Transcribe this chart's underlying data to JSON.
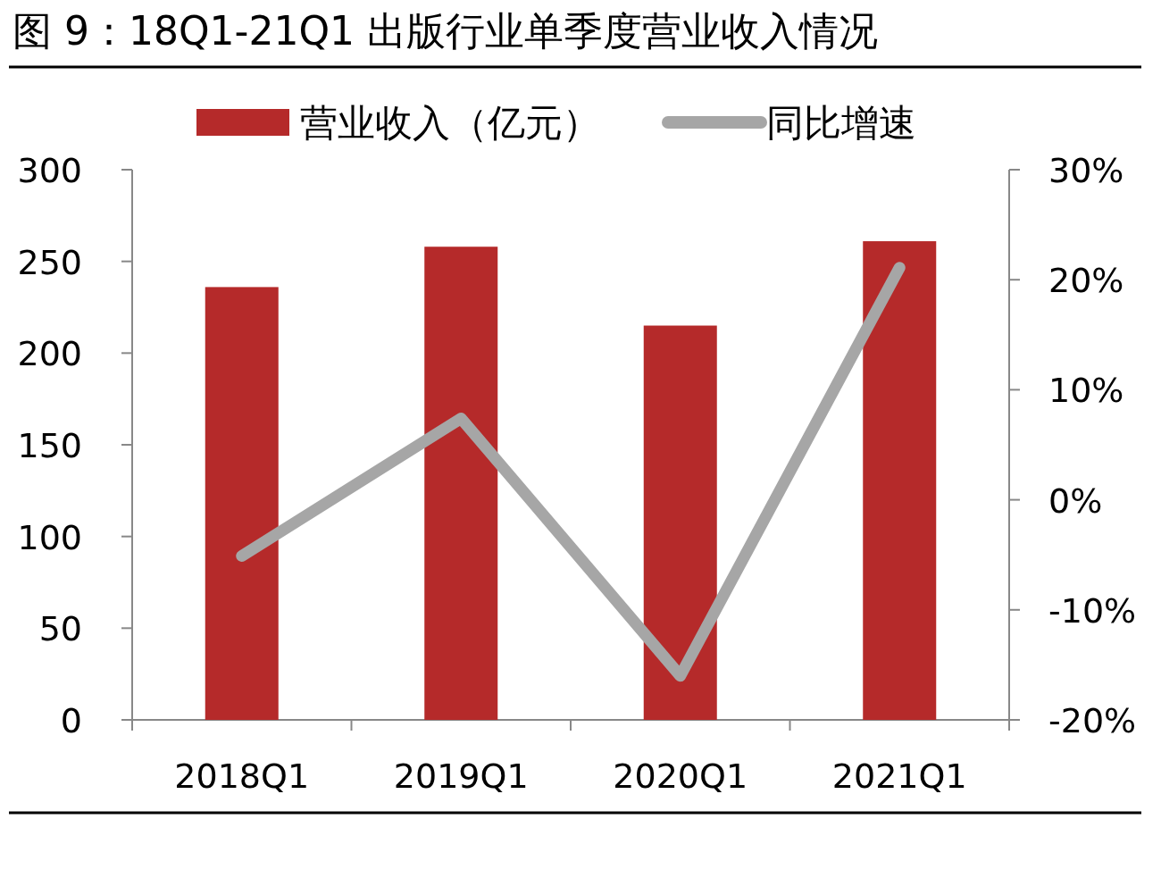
{
  "chart_data": {
    "type": "bar",
    "title": "图 9：18Q1-21Q1 出版行业单季度营业收入情况",
    "categories": [
      "2018Q1",
      "2019Q1",
      "2020Q1",
      "2021Q1"
    ],
    "series": [
      {
        "name": "营业收入（亿元）",
        "color": "#b52a2a",
        "values": [
          236,
          258,
          215,
          261
        ]
      },
      {
        "name": "同比增速",
        "type": "line",
        "axis": "y2",
        "color": "#a6a6a6",
        "values": [
          -5.1,
          7.4,
          -16.0,
          21.1
        ]
      }
    ],
    "ylim": [
      0,
      300
    ],
    "yticks": [
      0,
      50,
      100,
      150,
      200,
      250,
      300
    ],
    "y2lim": [
      -20,
      30
    ],
    "y2ticks": [
      {
        "value": -20,
        "label": "-20%"
      },
      {
        "value": -10,
        "label": "-10%"
      },
      {
        "value": 0,
        "label": "0%"
      },
      {
        "value": 10,
        "label": "10%"
      },
      {
        "value": 20,
        "label": "20%"
      },
      {
        "value": 30,
        "label": "30%"
      }
    ],
    "grid": false,
    "legend": "top",
    "marker": "none",
    "line_style": "solid"
  }
}
